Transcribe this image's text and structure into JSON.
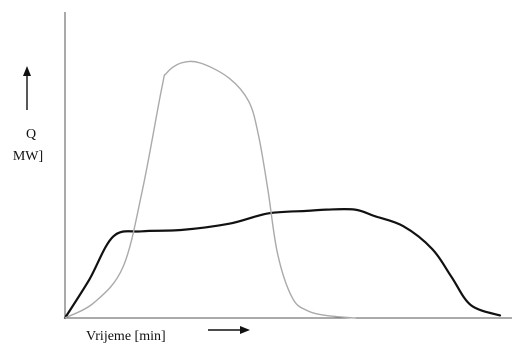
{
  "chart_data": {
    "type": "line",
    "ylabel_symbol": "Q",
    "ylabel_unit": "MW]",
    "xlabel": "Vrijeme [min]",
    "grid": false,
    "legend": "none",
    "series": [
      {
        "color": "#111111",
        "x": [
          0,
          2.5,
          5,
          8,
          12,
          17,
          21,
          25,
          27,
          30,
          32,
          35,
          38,
          40,
          42,
          45
        ],
        "y": [
          0,
          15,
          32,
          34,
          34.5,
          37,
          41,
          42,
          42.5,
          42.5,
          40,
          36,
          27,
          16,
          5,
          1
        ]
      },
      {
        "color": "#aaaaaa",
        "x": [
          0,
          3,
          6,
          8,
          10,
          10.5,
          12,
          14,
          17,
          19,
          20,
          21,
          22,
          23.5,
          25,
          27,
          30
        ],
        "y": [
          0,
          6,
          20,
          50,
          90,
          96,
          100,
          100,
          94,
          85,
          72,
          50,
          25,
          8,
          3,
          1,
          0
        ]
      }
    ]
  }
}
